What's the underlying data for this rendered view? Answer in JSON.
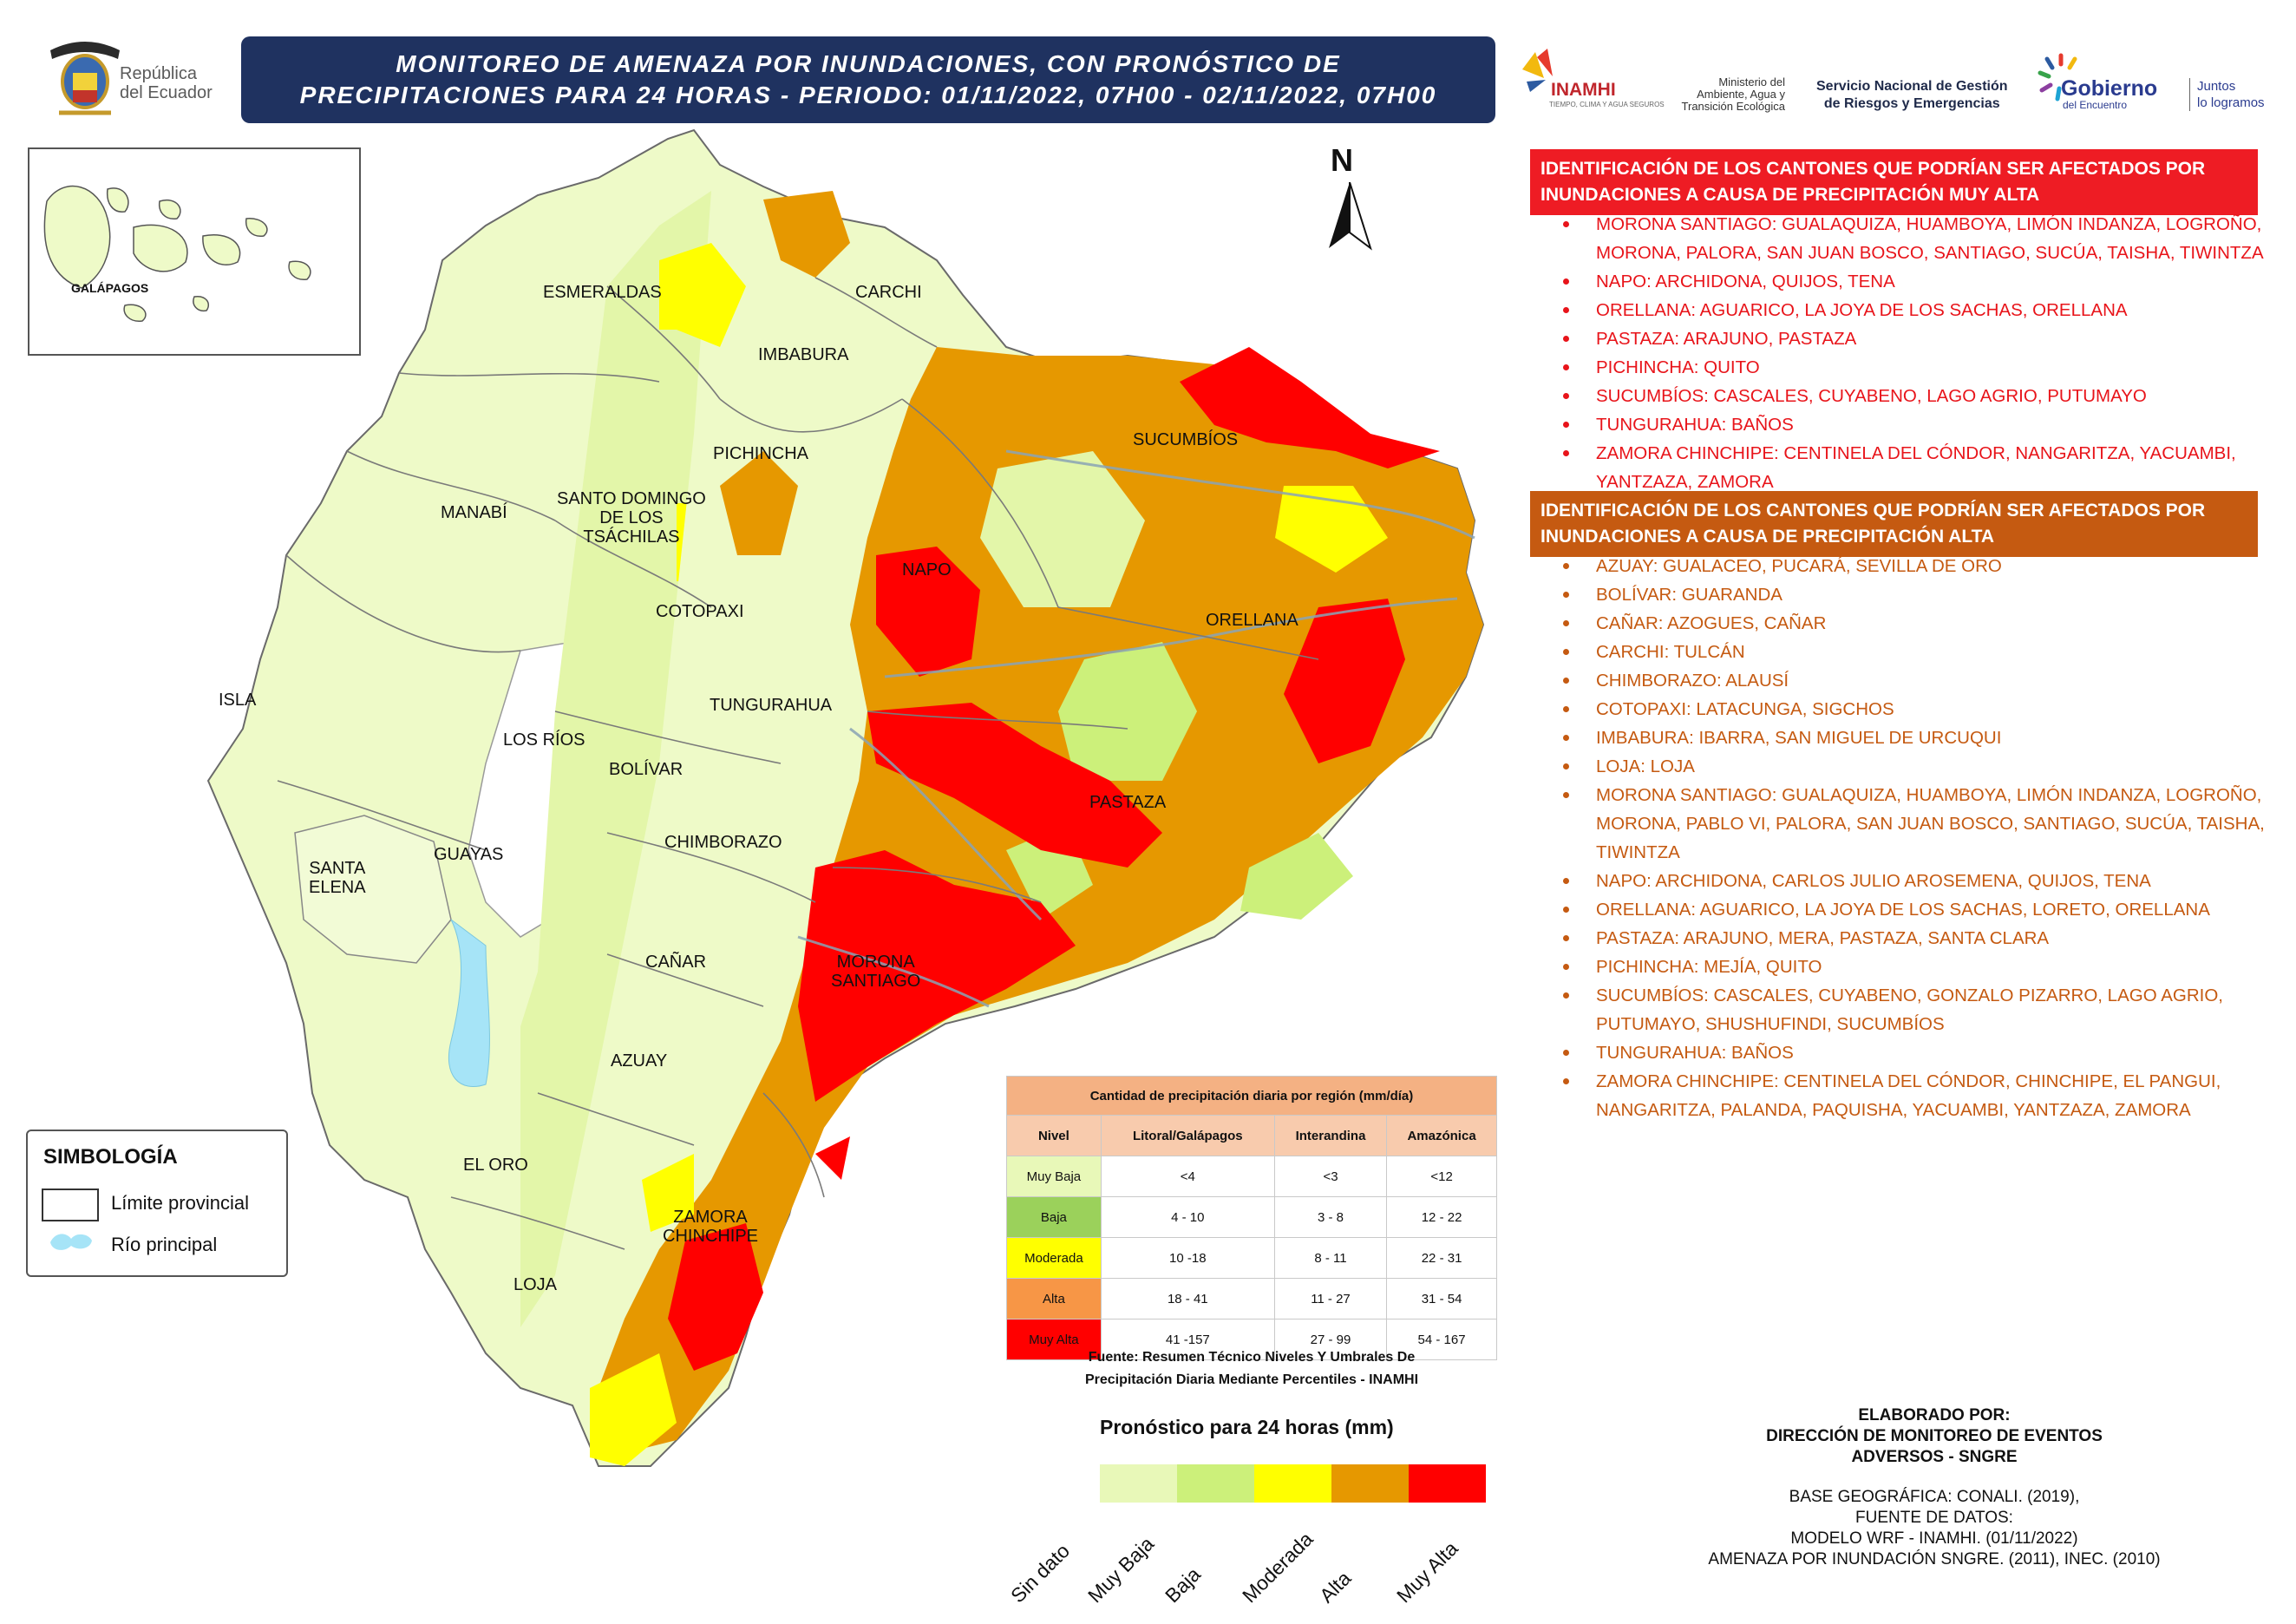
{
  "header": {
    "country_text": [
      "República",
      "del Ecuador"
    ],
    "title_lines": [
      "MONITOREO DE AMENAZA POR INUNDACIONES, CON PRONÓSTICO DE",
      "PRECIPITACIONES  PARA 24  HORAS - PERIODO: 01/11/2022, 07H00 - 02/11/2022, 07H00"
    ],
    "inamhi": "INAMHI",
    "inamhi_sub": "TIEMPO, CLIMA Y AGUA SEGUROS",
    "ministerio": [
      "Ministerio del",
      "Ambiente, Agua y",
      "Transición Ecológica"
    ],
    "sngre": [
      "Servicio Nacional de Gestión",
      "de Riesgos y Emergencias"
    ],
    "gobierno_title": "Gobierno",
    "gobierno_sub": "del Encuentro",
    "juntos": [
      "Juntos",
      "lo logramos"
    ],
    "title_bg": "#1f3260"
  },
  "map": {
    "north_label": "N",
    "inset_label": "GALÁPAGOS",
    "provinces": {
      "esmeraldas": "ESMERALDAS",
      "carchi": "CARCHI",
      "imbabura": "IMBABURA",
      "sucumbios": "SUCUMBÍOS",
      "pichincha": "PICHINCHA",
      "manabi": "MANABÍ",
      "santo_domingo": [
        "SANTO DOMINGO",
        "DE LOS",
        "TSÁCHILAS"
      ],
      "napo": "NAPO",
      "orellana": "ORELLANA",
      "cotopaxi": "COTOPAXI",
      "isla": "ISLA",
      "tungurahua": "TUNGURAHUA",
      "los_rios": "LOS RÍOS",
      "bolivar": "BOLÍVAR",
      "pastaza": "PASTAZA",
      "santa_elena": [
        "SANTA",
        "ELENA"
      ],
      "guayas": "GUAYAS",
      "chimborazo": "CHIMBORAZO",
      "canar": "CAÑAR",
      "morona_santiago": [
        "MORONA",
        "SANTIAGO"
      ],
      "azuay": "AZUAY",
      "el_oro": "EL ORO",
      "zamora_chinchipe": [
        "ZAMORA",
        "CHINCHIPE"
      ],
      "loja": "LOJA"
    },
    "colors": {
      "sin_dato": "#ffffff",
      "muy_baja": "#e8f8b8",
      "baja": "#ccf07a",
      "moderada": "#ffff00",
      "alta": "#e69800",
      "muy_alta": "#ff0000",
      "river": "#a6e4f7"
    }
  },
  "panel": {
    "head_muy_alta": "IDENTIFICACIÓN DE LOS CANTONES QUE PODRÍAN SER AFECTADOS POR INUNDACIONES A CAUSA DE  PRECIPITACIÓN MUY ALTA",
    "list_muy_alta": [
      "MORONA SANTIAGO: GUALAQUIZA, HUAMBOYA, LIMÓN INDANZA, LOGROÑO, MORONA, PALORA, SAN JUAN BOSCO, SANTIAGO, SUCÚA, TAISHA, TIWINTZA",
      "NAPO: ARCHIDONA, QUIJOS, TENA",
      "ORELLANA: AGUARICO, LA JOYA DE LOS SACHAS, ORELLANA",
      "PASTAZA: ARAJUNO, PASTAZA",
      "PICHINCHA: QUITO",
      "SUCUMBÍOS: CASCALES, CUYABENO, LAGO AGRIO, PUTUMAYO",
      "TUNGURAHUA: BAÑOS",
      "ZAMORA CHINCHIPE: CENTINELA DEL CÓNDOR, NANGARITZA, YACUAMBI, YANTZAZA, ZAMORA"
    ],
    "head_alta": "IDENTIFICACIÓN DE LOS CANTONES QUE PODRÍAN SER AFECTADOS POR INUNDACIONES A CAUSA DE  PRECIPITACIÓN  ALTA",
    "list_alta": [
      "AZUAY: GUALACEO, PUCARÁ, SEVILLA DE ORO",
      "BOLÍVAR: GUARANDA",
      "CAÑAR: AZOGUES, CAÑAR",
      "CARCHI: TULCÁN",
      "CHIMBORAZO: ALAUSÍ",
      "COTOPAXI: LATACUNGA, SIGCHOS",
      "IMBABURA: IBARRA, SAN MIGUEL DE URCUQUI",
      "LOJA: LOJA",
      "MORONA SANTIAGO: GUALAQUIZA, HUAMBOYA, LIMÓN INDANZA, LOGROÑO, MORONA, PABLO VI, PALORA, SAN JUAN BOSCO, SANTIAGO, SUCÚA, TAISHA, TIWINTZA",
      "NAPO: ARCHIDONA, CARLOS JULIO AROSEMENA, QUIJOS, TENA",
      "ORELLANA: AGUARICO, LA JOYA DE LOS SACHAS, LORETO, ORELLANA",
      "PASTAZA: ARAJUNO, MERA, PASTAZA, SANTA CLARA",
      "PICHINCHA: MEJÍA, QUITO",
      "SUCUMBÍOS: CASCALES, CUYABENO, GONZALO PIZARRO, LAGO AGRIO, PUTUMAYO, SHUSHUFINDI, SUCUMBÍOS",
      "TUNGURAHUA: BAÑOS",
      "ZAMORA CHINCHIPE: CENTINELA DEL CÓNDOR, CHINCHIPE, EL PANGUI, NANGARITZA, PALANDA, PAQUISHA, YACUAMBI, YANTZAZA, ZAMORA"
    ]
  },
  "table": {
    "caption": "Cantidad de precipitación diaria por región (mm/día)",
    "columns": [
      "Nivel",
      "Litoral/Galápagos",
      "Interandina",
      "Amazónica"
    ],
    "rows": [
      {
        "nivel": "Muy Baja",
        "color": "#e8f8b8",
        "litoral": "<4",
        "interandina": "<3",
        "amazonica": "<12"
      },
      {
        "nivel": "Baja",
        "color": "#9bd15b",
        "litoral": "4 - 10",
        "interandina": "3 - 8",
        "amazonica": "12 - 22"
      },
      {
        "nivel": "Moderada",
        "color": "#ffff00",
        "litoral": "10 -18",
        "interandina": "8 - 11",
        "amazonica": "22 - 31"
      },
      {
        "nivel": "Alta",
        "color": "#f79646",
        "litoral": "18 - 41",
        "interandina": "11 - 27",
        "amazonica": "31 - 54"
      },
      {
        "nivel": "Muy Alta",
        "color": "#ff0000",
        "litoral": "41 -157",
        "interandina": "27 - 99",
        "amazonica": "54 - 167"
      }
    ],
    "source": [
      "Fuente: Resumen Técnico Niveles Y Umbrales De",
      "Precipitación Diaria Mediante Percentiles - INAMHI"
    ]
  },
  "legend_bar": {
    "title": "Pronóstico para 24 horas (mm)",
    "labels": [
      "Sin dato",
      "Muy Baja",
      "Baja",
      "Moderada",
      "Alta",
      "Muy Alta"
    ],
    "colors": [
      "#e8f8b8",
      "#ccf07a",
      "#ffff00",
      "#e69800",
      "#ff0000"
    ]
  },
  "simbologia": {
    "title": "SIMBOLOGÍA",
    "limite": "Límite provincial",
    "rio": "Río principal"
  },
  "credits": {
    "elaborado": [
      "ELABORADO POR:",
      "DIRECCIÓN DE MONITOREO DE EVENTOS",
      "ADVERSOS - SNGRE"
    ],
    "fuentes": [
      "BASE GEOGRÁFICA: CONALI. (2019),",
      "FUENTE DE DATOS:",
      "MODELO WRF - INAMHI. (01/11/2022)",
      "AMENAZA POR INUNDACIÓN SNGRE. (2011), INEC. (2010)"
    ]
  }
}
